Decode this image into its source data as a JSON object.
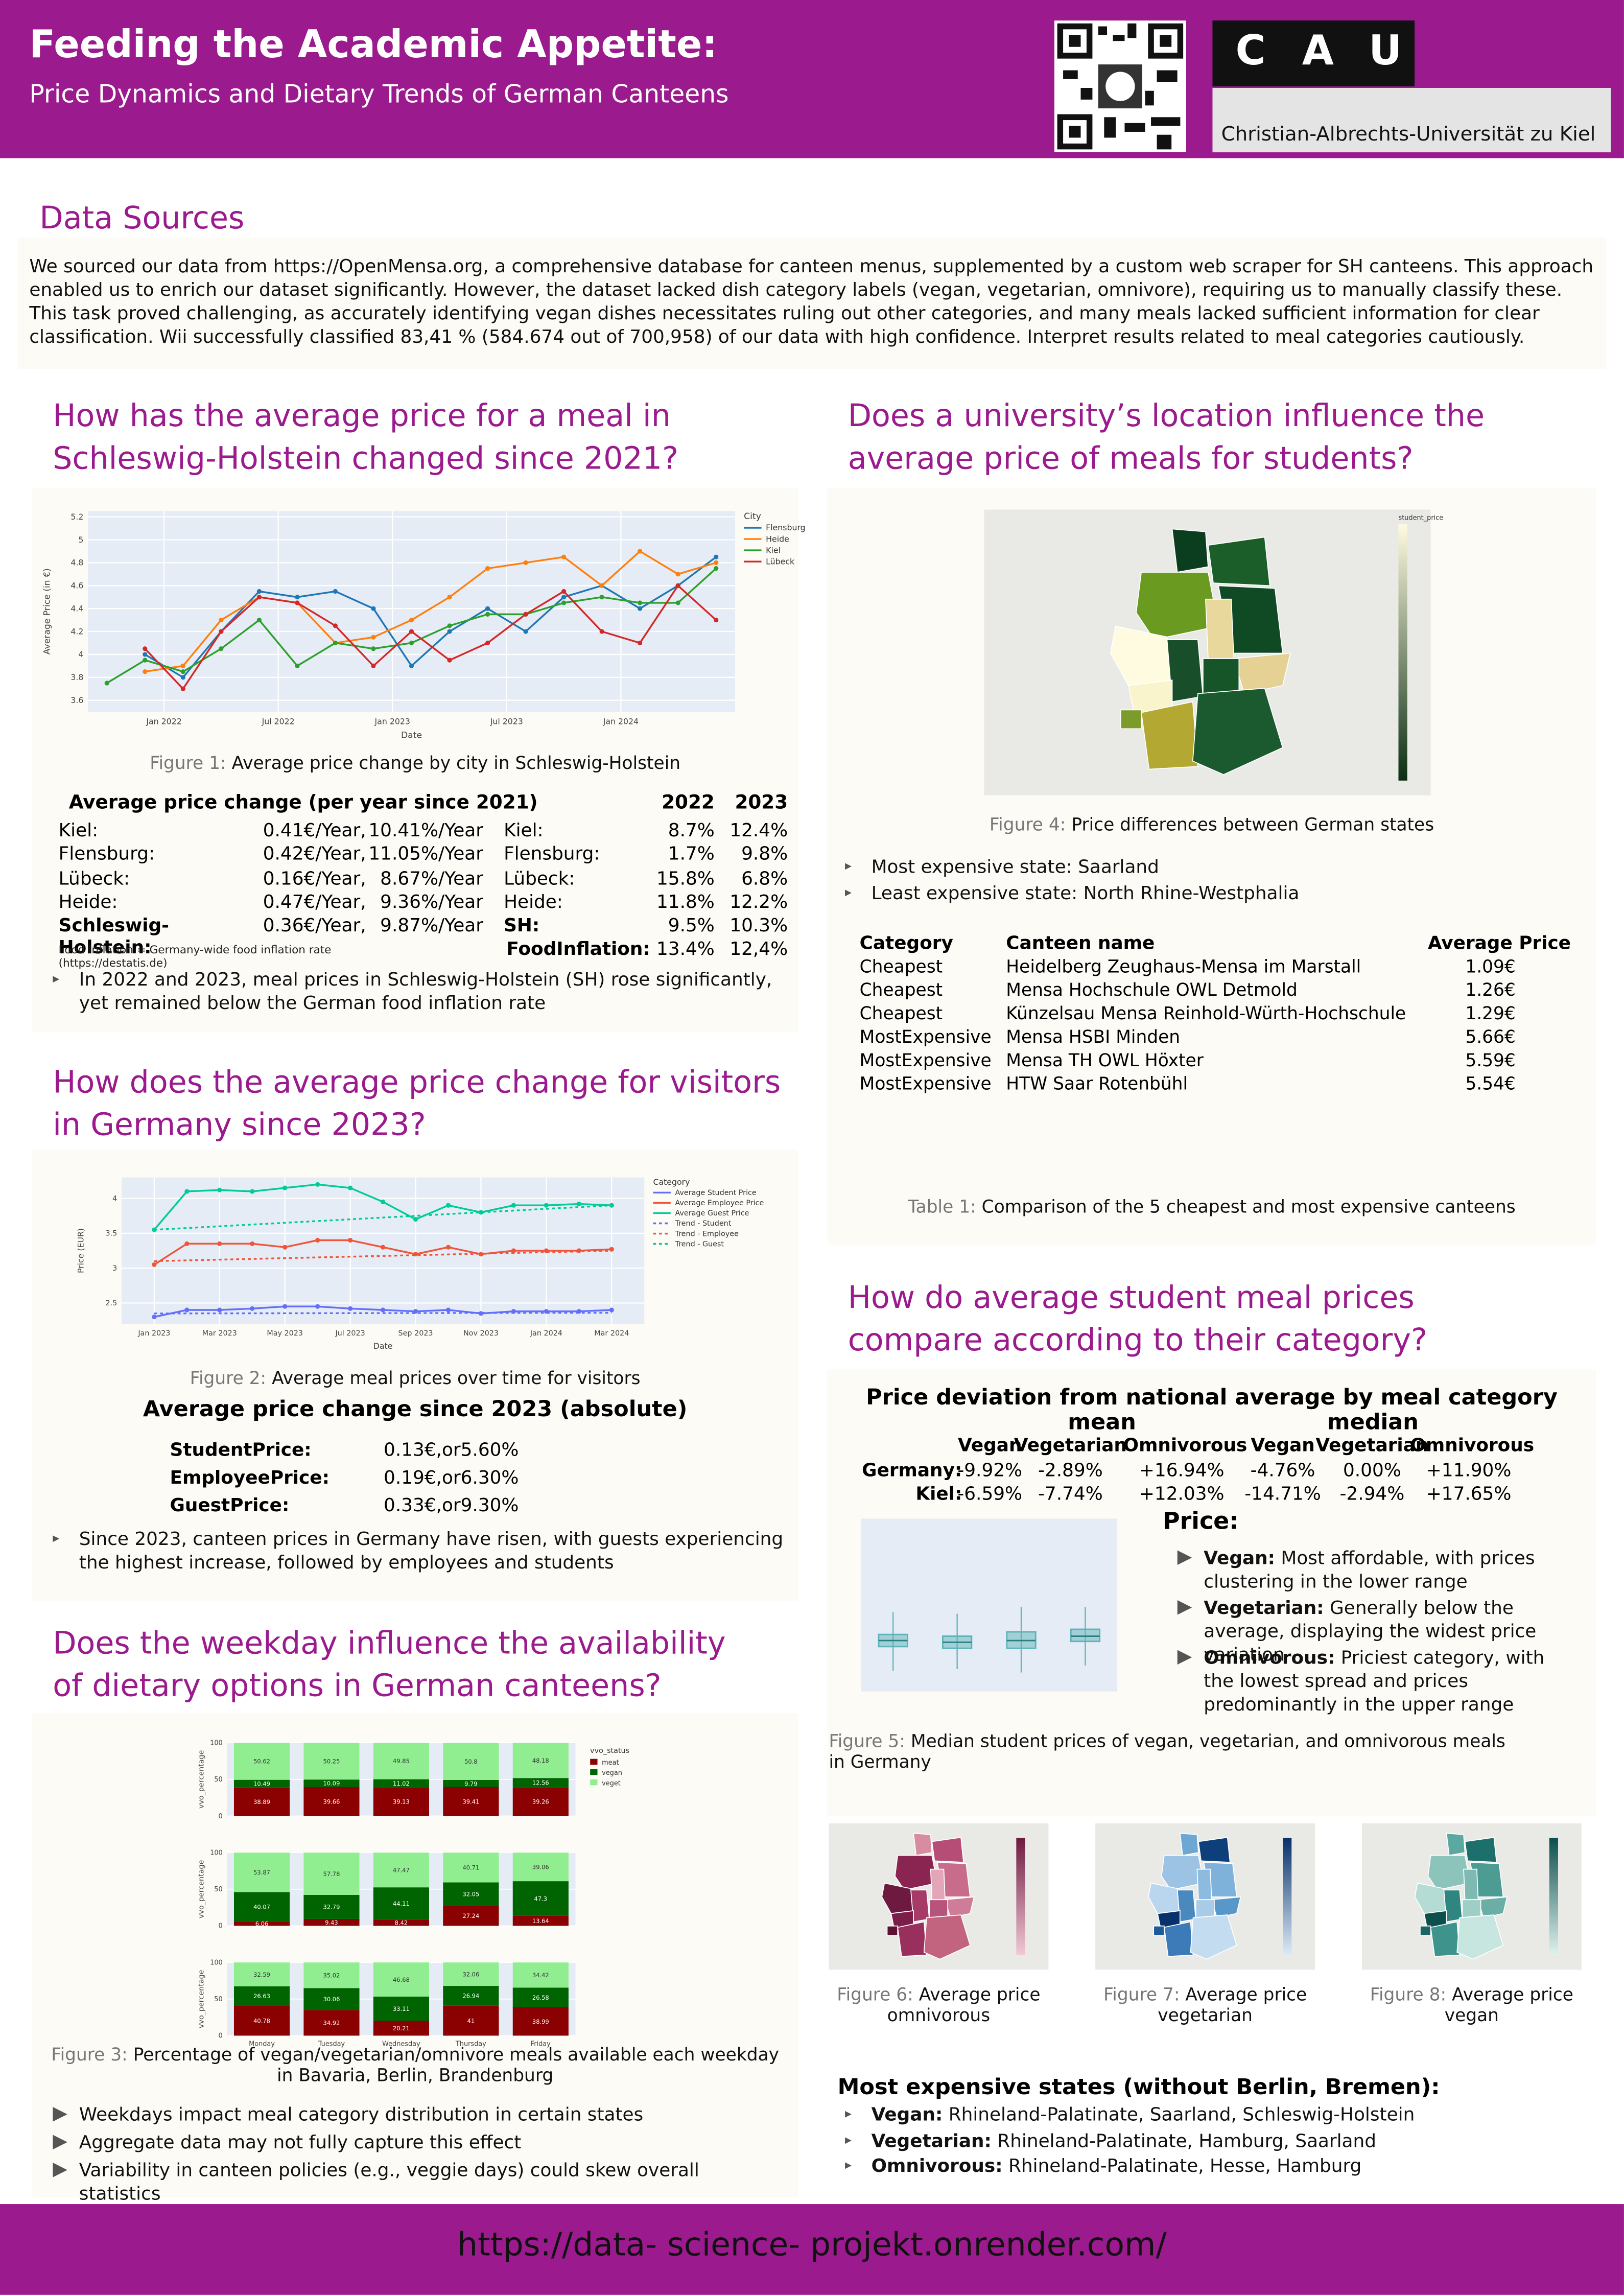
{
  "header": {
    "title": "Feeding the Academic Appetite:",
    "subtitle": "Price Dynamics and Dietary Trends of German Canteens",
    "logo": [
      "C",
      "A",
      "U"
    ],
    "university": "Christian-Albrechts-Universität zu Kiel"
  },
  "data_sources": {
    "heading": "Data Sources",
    "text": "We sourced our data from https://OpenMensa.org, a comprehensive database for canteen menus, supplemented by a custom web scraper for SH canteens. This approach enabled us to enrich our dataset significantly. However, the dataset lacked dish category labels (vegan, vegetarian, omnivore), requiring us to manually classify these. This task proved challenging, as accurately identifying vegan dishes necessitates ruling out other categories, and many meals lacked sufficient information for clear classification. Wii successfully classified 83,41 % (584.674 out of 700,958) of our data with high confidence. Interpret results related to meal categories cautiously."
  },
  "s1": {
    "heading": "How has the average price for a meal in Schleswig-Holstein changed since 2021?",
    "caption_label": "Figure 1:",
    "caption": "Average price change by city in Schleswig-Holstein",
    "table_title": "Average price change (per year since 2021)",
    "years": [
      "2022",
      "2023"
    ],
    "rows": [
      [
        "Kiel:",
        "0.41€/Year,",
        "10.41%/Year",
        "Kiel:",
        "8.7%",
        "12.4%"
      ],
      [
        "Flensburg:",
        "0.42€/Year,",
        "11.05%/Year",
        "Flensburg:",
        "1.7%",
        "9.8%"
      ],
      [
        "Lübeck:",
        "0.16€/Year,",
        "8.67%/Year",
        "Lübeck:",
        "15.8%",
        "6.8%"
      ],
      [
        "Heide:",
        "0.47€/Year,",
        "9.36%/Year",
        "Heide:",
        "11.8%",
        "12.2%"
      ],
      [
        "Schleswig-Holstein:",
        "0.36€/Year,",
        "9.87%/Year",
        "SH:",
        "9.5%",
        "10.3%"
      ]
    ],
    "inflation": [
      "FoodInflation:",
      "13.4%",
      "12,4%"
    ],
    "note": "Food Inflation = Germany-wide food inflation rate (https://destatis.de)",
    "bullet": "In 2022 and 2023, meal prices in Schleswig-Holstein (SH) rose significantly, yet remained below the German food inflation rate"
  },
  "s2": {
    "heading": "How does the average price change for visitors in Germany since 2023?",
    "caption_label": "Figure 2:",
    "caption": "Average meal prices over time for visitors",
    "table_title": "Average price change since 2023 (absolute)",
    "rows": [
      [
        "StudentPrice:",
        "0.13€,or5.60%"
      ],
      [
        "EmployeePrice:",
        "0.19€,or6.30%"
      ],
      [
        "GuestPrice:",
        "0.33€,or9.30%"
      ]
    ],
    "bullet": "Since 2023, canteen prices in Germany have risen, with guests experiencing the highest increase, followed by employees and students"
  },
  "s3": {
    "heading": "Does the weekday influence the availability of dietary options in German canteens?",
    "caption_label": "Figure 3:",
    "caption": "Percentage of vegan/vegetarian/omnivore meals available each weekday in Bavaria, Berlin, Brandenburg",
    "bullets": [
      "Weekdays impact meal category distribution in certain states",
      "Aggregate data may not fully capture this effect",
      "Variability in canteen policies (e.g., veggie days) could skew overall statistics"
    ]
  },
  "s4": {
    "heading": "Does a university’s location influence the average price of meals for students?",
    "map_legend_title": "student_price",
    "caption_label": "Figure 4:",
    "caption": "Price differences between German states",
    "bullets": [
      "Most expensive state: Saarland",
      "Least expensive state: North Rhine-Westphalia"
    ],
    "table": {
      "columns": [
        "Category",
        "Canteen name",
        "Average Price"
      ],
      "rows": [
        [
          "Cheapest",
          "Heidelberg Zeughaus-Mensa im Marstall",
          "1.09€"
        ],
        [
          "Cheapest",
          "Mensa Hochschule OWL Detmold",
          "1.26€"
        ],
        [
          "Cheapest",
          "Künzelsau Mensa Reinhold-Würth-Hochschule",
          "1.29€"
        ],
        [
          "MostExpensive",
          "Mensa HSBI Minden",
          "5.66€"
        ],
        [
          "MostExpensive",
          "Mensa TH OWL Höxter",
          "5.59€"
        ],
        [
          "MostExpensive",
          "HTW Saar Rotenbühl",
          "5.54€"
        ]
      ]
    },
    "table_caption_label": "Table 1:",
    "table_caption": "Comparison of the 5 cheapest and most expensive canteens"
  },
  "s5": {
    "heading": "How do average student meal prices compare according to their category?",
    "deviation": {
      "title": "Price deviation from national average by meal category",
      "groups": [
        "mean",
        "median"
      ],
      "columns": [
        "Vegan",
        "Vegetarian",
        "Omnivorous"
      ],
      "rows": [
        {
          "label": "Germany:",
          "values": [
            "-9.92%",
            "-2.89%",
            "+16.94%",
            "-4.76%",
            "0.00%",
            "+11.90%"
          ]
        },
        {
          "label": "Kiel:",
          "values": [
            "-6.59%",
            "-7.74%",
            "+12.03%",
            "-14.71%",
            "-2.94%",
            "+17.65%"
          ]
        }
      ]
    },
    "price_heading": "Price:",
    "bullets": [
      {
        "term": "Vegan:",
        "text": "Most affordable, with prices clustering in the lower range"
      },
      {
        "term": "Vegetarian:",
        "text": "Generally below the average, displaying the widest price variation"
      },
      {
        "term": "Omnivorous:",
        "text": "Priciest category, with the lowest spread and prices predominantly in the upper range"
      }
    ],
    "caption_label": "Figure 5:",
    "caption": "Median student prices of vegan, vegetarian, and omnivorous meals in Germany",
    "maps": [
      {
        "label": "Figure 6:",
        "caption": "Average price omnivorous"
      },
      {
        "label": "Figure 7:",
        "caption": "Average price vegetarian"
      },
      {
        "label": "Figure 8:",
        "caption": "Average price vegan"
      }
    ],
    "expensive_title": "Most expensive states (without Berlin, Bremen):",
    "expensive": [
      {
        "term": "Vegan:",
        "text": "Rhineland-Palatinate, Saarland, Schleswig-Holstein"
      },
      {
        "term": "Vegetarian:",
        "text": "Rhineland-Palatinate, Hamburg, Saarland"
      },
      {
        "term": "Omnivorous:",
        "text": "Rhineland-Palatinate, Hesse, Hamburg"
      }
    ]
  },
  "footer": {
    "url": "https://data- science- projekt.onrender.com/"
  },
  "chart_data": [
    {
      "type": "line",
      "xlabel": "Date",
      "ylabel": "Average Price (in €)",
      "legend_title": "City",
      "markers": true,
      "grid": true,
      "x": [
        "2021-10",
        "2021-12",
        "2022-02",
        "2022-04",
        "2022-06",
        "2022-08",
        "2022-10",
        "2022-12",
        "2023-02",
        "2023-04",
        "2023-06",
        "2023-08",
        "2023-10",
        "2023-12",
        "2024-02",
        "2024-04",
        "2024-06"
      ],
      "xlim": [
        "2021-09",
        "2024-07"
      ],
      "xticks": [
        {
          "value": "2022-01",
          "label": "Jan 2022"
        },
        {
          "value": "2022-07",
          "label": "Jul 2022"
        },
        {
          "value": "2023-01",
          "label": "Jan 2023"
        },
        {
          "value": "2023-07",
          "label": "Jul 2023"
        },
        {
          "value": "2024-01",
          "label": "Jan 2024"
        }
      ],
      "ylim": [
        3.5,
        5.25
      ],
      "yticks": [
        3.6,
        3.8,
        4,
        4.2,
        4.4,
        4.6,
        4.8,
        5,
        5.2
      ],
      "series": [
        {
          "name": "Flensburg",
          "color": "#1f77b4",
          "values": [
            null,
            4.0,
            3.8,
            4.2,
            4.55,
            4.5,
            4.55,
            4.4,
            3.9,
            4.2,
            4.4,
            4.2,
            4.5,
            4.6,
            4.4,
            4.6,
            4.85
          ]
        },
        {
          "name": "Heide",
          "color": "#ff7f0e",
          "values": [
            null,
            3.85,
            3.9,
            4.3,
            4.5,
            4.45,
            4.1,
            4.15,
            4.3,
            4.5,
            4.75,
            4.8,
            4.85,
            4.6,
            4.9,
            4.7,
            4.8
          ]
        },
        {
          "name": "Kiel",
          "color": "#2ca02c",
          "values": [
            3.75,
            3.95,
            3.85,
            4.05,
            4.3,
            3.9,
            4.1,
            4.05,
            4.1,
            4.25,
            4.35,
            4.35,
            4.45,
            4.5,
            4.45,
            4.45,
            4.75
          ]
        },
        {
          "name": "Lübeck",
          "color": "#d62728",
          "values": [
            null,
            4.05,
            3.7,
            4.2,
            4.5,
            4.45,
            4.25,
            3.9,
            4.2,
            3.95,
            4.1,
            4.35,
            4.55,
            4.2,
            4.1,
            4.6,
            4.3
          ]
        }
      ]
    },
    {
      "type": "line",
      "xlabel": "Date",
      "ylabel": "Price (EUR)",
      "legend_title": "Category",
      "markers": true,
      "grid": true,
      "x": [
        "2023-01",
        "2023-02",
        "2023-03",
        "2023-04",
        "2023-05",
        "2023-06",
        "2023-07",
        "2023-08",
        "2023-09",
        "2023-10",
        "2023-11",
        "2023-12",
        "2024-01",
        "2024-02",
        "2024-03"
      ],
      "xlim": [
        "2022-12",
        "2024-04"
      ],
      "xticks": [
        {
          "value": "2023-01",
          "label": "Jan 2023"
        },
        {
          "value": "2023-03",
          "label": "Mar 2023"
        },
        {
          "value": "2023-05",
          "label": "May 2023"
        },
        {
          "value": "2023-07",
          "label": "Jul 2023"
        },
        {
          "value": "2023-09",
          "label": "Sep 2023"
        },
        {
          "value": "2023-11",
          "label": "Nov 2023"
        },
        {
          "value": "2024-01",
          "label": "Jan 2024"
        },
        {
          "value": "2024-03",
          "label": "Mar 2024"
        }
      ],
      "ylim": [
        2.2,
        4.3
      ],
      "yticks": [
        2.5,
        3,
        3.5,
        4
      ],
      "series": [
        {
          "name": "Average Student Price",
          "color": "#636efa",
          "values": [
            2.3,
            2.4,
            2.4,
            2.42,
            2.45,
            2.45,
            2.42,
            2.4,
            2.38,
            2.4,
            2.35,
            2.38,
            2.38,
            2.38,
            2.4
          ]
        },
        {
          "name": "Average Employee Price",
          "color": "#ef553b",
          "values": [
            3.05,
            3.35,
            3.35,
            3.35,
            3.3,
            3.4,
            3.4,
            3.3,
            3.2,
            3.3,
            3.2,
            3.25,
            3.25,
            3.25,
            3.27
          ]
        },
        {
          "name": "Average Guest Price",
          "color": "#00cc96",
          "values": [
            3.55,
            4.1,
            4.12,
            4.1,
            4.15,
            4.2,
            4.15,
            3.95,
            3.7,
            3.9,
            3.8,
            3.9,
            3.9,
            3.92,
            3.9
          ]
        },
        {
          "name": "Trend - Student",
          "color": "#636efa",
          "dash": "dot",
          "x": [
            "2023-01",
            "2024-03"
          ],
          "values": [
            2.35,
            2.36
          ]
        },
        {
          "name": "Trend - Employee",
          "color": "#ef553b",
          "dash": "dot",
          "x": [
            "2023-01",
            "2024-03"
          ],
          "values": [
            3.1,
            3.25
          ]
        },
        {
          "name": "Trend - Guest",
          "color": "#00cc96",
          "dash": "dot",
          "x": [
            "2023-01",
            "2024-03"
          ],
          "values": [
            3.55,
            3.9
          ]
        }
      ]
    },
    {
      "type": "stacked_bar",
      "ylabel": "vvo_percentage",
      "legend_title": "vvo_status",
      "categories": [
        "Monday",
        "Tuesday",
        "Wednesday",
        "Thursday",
        "Friday"
      ],
      "ylim": [
        0,
        100
      ],
      "yticks": [
        0,
        50,
        100
      ],
      "legend": [
        {
          "name": "meat",
          "color": "#8b0000"
        },
        {
          "name": "vegan",
          "color": "#006400"
        },
        {
          "name": "veget",
          "color": "#90ee90"
        }
      ],
      "panels": [
        [
          [
            38.89,
            39.66,
            39.13,
            39.41,
            39.26
          ],
          [
            10.49,
            10.09,
            11.02,
            9.79,
            12.56
          ],
          [
            50.62,
            50.25,
            49.85,
            50.8,
            48.18
          ]
        ],
        [
          [
            6.06,
            9.43,
            8.42,
            27.24,
            13.64
          ],
          [
            40.07,
            32.79,
            44.11,
            32.05,
            47.3
          ],
          [
            53.87,
            57.78,
            47.47,
            40.71,
            39.06
          ]
        ],
        [
          [
            40.78,
            34.92,
            20.21,
            41,
            38.99
          ],
          [
            26.63,
            30.06,
            33.11,
            26.94,
            26.58
          ],
          [
            32.59,
            35.02,
            46.68,
            32.06,
            34.42
          ]
        ]
      ]
    },
    {
      "type": "box",
      "color": "#5fb3b8",
      "ylim": [
        0,
        10
      ],
      "boxes": [
        {
          "low": 1.2,
          "q1": 2.6,
          "median": 2.95,
          "q3": 3.3,
          "high": 4.6
        },
        {
          "low": 1.3,
          "q1": 2.5,
          "median": 2.85,
          "q3": 3.2,
          "high": 4.5
        },
        {
          "low": 1.1,
          "q1": 2.5,
          "median": 2.95,
          "q3": 3.45,
          "high": 4.9
        },
        {
          "low": 1.5,
          "q1": 2.9,
          "median": 3.2,
          "q3": 3.6,
          "high": 4.9
        }
      ]
    }
  ]
}
